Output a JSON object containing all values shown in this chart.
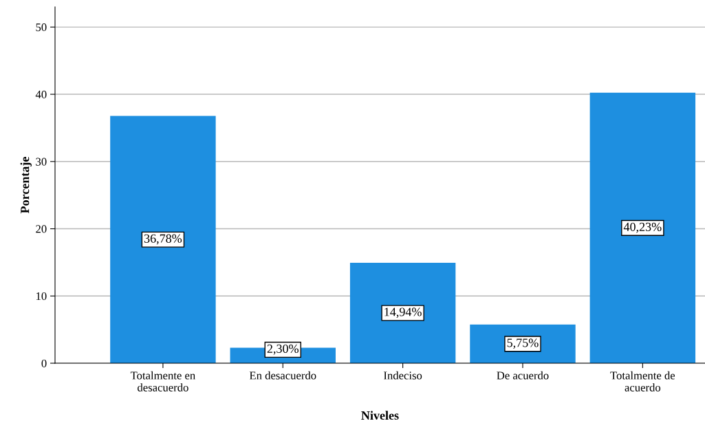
{
  "chart_data": {
    "type": "bar",
    "xlabel": "Niveles",
    "ylabel": "Porcentaje",
    "categories": [
      "Totalmente en\ndesacuerdo",
      "En desacuerdo",
      "Indeciso",
      "De acuerdo",
      "Totalmente de\nacuerdo"
    ],
    "values": [
      36.78,
      2.3,
      14.94,
      5.75,
      40.23
    ],
    "value_labels": [
      "36,78%",
      "2,30%",
      "14,94%",
      "5,75%",
      "40,23%"
    ],
    "color": "#1e8fe0",
    "ylim": [
      0,
      53
    ],
    "yticks": [
      0,
      10,
      20,
      30,
      40,
      50
    ],
    "grid": "y",
    "legend": false
  }
}
